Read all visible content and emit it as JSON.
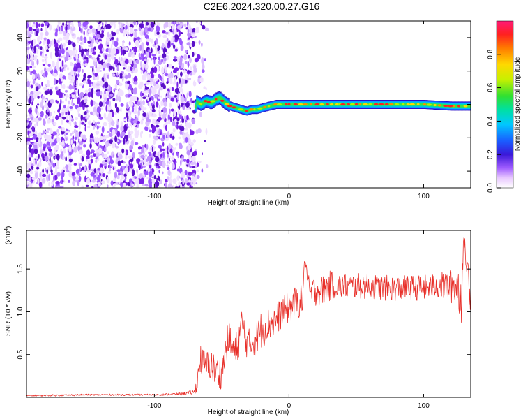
{
  "title": "C2E6.2024.320.00.27.G16",
  "colors": {
    "snr_line": "#e8302a",
    "noise_dots": "#7a22e8",
    "plot_bg": "#ffffff"
  },
  "chart_data": [
    {
      "type": "heatmap",
      "name": "spectrogram",
      "xlabel": "Height of straight line (km)",
      "ylabel": "Frequency (Hz)",
      "xlim": [
        -195,
        135
      ],
      "ylim": [
        -50,
        50
      ],
      "xticks": [
        -100,
        0,
        100
      ],
      "yticks": [
        -40,
        -20,
        0,
        20,
        40
      ],
      "noise_region_x": [
        -195,
        -70
      ],
      "signal_frequency_trace": {
        "x": [
          -70,
          -66,
          -62,
          -58,
          -55,
          -52,
          -48,
          -44,
          -40,
          -36,
          -32,
          -28,
          -24,
          -20,
          -15,
          -10,
          -5,
          0,
          10,
          20,
          40,
          60,
          80,
          100,
          120,
          135
        ],
        "y": [
          2,
          0,
          2,
          1,
          3,
          4,
          1,
          -1,
          -2,
          -3,
          -4,
          -3,
          -3,
          -2,
          -1,
          0,
          0,
          0,
          0,
          0,
          0,
          0,
          0,
          0,
          -1,
          -1
        ]
      },
      "colorbar": {
        "label": "Normalized spectral amplitude",
        "range": [
          0,
          1
        ],
        "ticks": [
          "0.0",
          "0.2",
          "0.4",
          "0.6",
          "0.8"
        ]
      }
    },
    {
      "type": "line",
      "name": "snr",
      "xlabel": "Height of straight line (km)",
      "ylabel": "SNR (10 * v/v)",
      "y_multiplier": "(x10",
      "y_multiplier_exp": "4",
      "xlim": [
        -195,
        135
      ],
      "ylim": [
        0,
        1.95
      ],
      "xticks": [
        -100,
        0,
        100
      ],
      "yticks": [
        "0.5",
        "1.0",
        "1.5"
      ],
      "series": [
        {
          "x": [
            -195,
            -150,
            -100,
            -80,
            -70,
            -68,
            -66,
            -62,
            -58,
            -55,
            -50,
            -45,
            -40,
            -35,
            -30,
            -25,
            -20,
            -15,
            -10,
            -5,
            0,
            5,
            10,
            12,
            15,
            20,
            25,
            30,
            35,
            40,
            50,
            60,
            70,
            80,
            90,
            100,
            110,
            120,
            125,
            128,
            130,
            133,
            135
          ],
          "y": [
            0.02,
            0.03,
            0.03,
            0.04,
            0.06,
            0.2,
            0.45,
            0.35,
            0.4,
            0.28,
            0.3,
            0.7,
            0.5,
            0.85,
            0.6,
            0.7,
            0.8,
            0.85,
            0.9,
            1.0,
            1.05,
            1.1,
            1.15,
            1.65,
            1.2,
            1.25,
            1.25,
            1.3,
            1.3,
            1.3,
            1.3,
            1.3,
            1.28,
            1.27,
            1.28,
            1.28,
            1.3,
            1.3,
            1.3,
            1.2,
            1.85,
            1.4,
            1.3
          ],
          "noise_amplitude": [
            0.01,
            0.01,
            0.01,
            0.015,
            0.03,
            0.12,
            0.18,
            0.18,
            0.2,
            0.2,
            0.2,
            0.2,
            0.22,
            0.22,
            0.2,
            0.22,
            0.22,
            0.2,
            0.2,
            0.18,
            0.18,
            0.2,
            0.2,
            0.05,
            0.2,
            0.18,
            0.18,
            0.18,
            0.16,
            0.15,
            0.15,
            0.15,
            0.15,
            0.15,
            0.15,
            0.15,
            0.15,
            0.2,
            0.25,
            0.35,
            0.05,
            0.3,
            0.3
          ]
        }
      ]
    }
  ]
}
